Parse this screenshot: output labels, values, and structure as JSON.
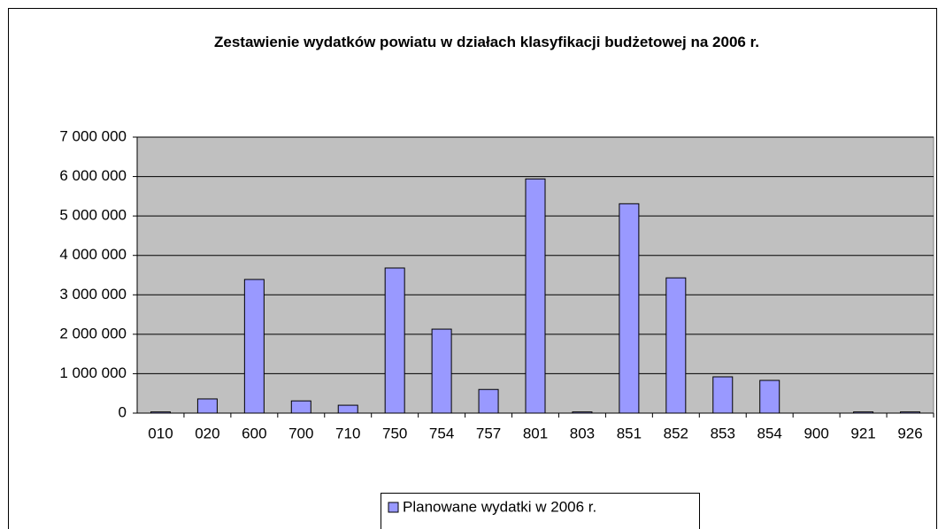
{
  "chart_data": {
    "type": "bar",
    "title": "Zestawienie wydatków powiatu w działach klasyfikacji budżetowej na 2006 r.",
    "categories": [
      "010",
      "020",
      "600",
      "700",
      "710",
      "750",
      "754",
      "757",
      "801",
      "803",
      "851",
      "852",
      "853",
      "854",
      "900",
      "921",
      "926"
    ],
    "series": [
      {
        "name": "Planowane wydatki w 2006 r.",
        "color": "#9999ff",
        "values": [
          30000,
          360000,
          3390000,
          310000,
          200000,
          3680000,
          2130000,
          600000,
          5940000,
          30000,
          5310000,
          3430000,
          920000,
          830000,
          0,
          30000,
          30000
        ]
      }
    ],
    "ylim": [
      0,
      7000000
    ],
    "yticks": [
      {
        "value": 0,
        "label": "0"
      },
      {
        "value": 1000000,
        "label": "1 000 000"
      },
      {
        "value": 2000000,
        "label": "2 000 000"
      },
      {
        "value": 3000000,
        "label": "3 000 000"
      },
      {
        "value": 4000000,
        "label": "4 000 000"
      },
      {
        "value": 5000000,
        "label": "5 000 000"
      },
      {
        "value": 6000000,
        "label": "6 000 000"
      },
      {
        "value": 7000000,
        "label": "7 000 000"
      }
    ],
    "grid": true,
    "plot_background": "#c0c0c0",
    "legend": "bottom"
  }
}
